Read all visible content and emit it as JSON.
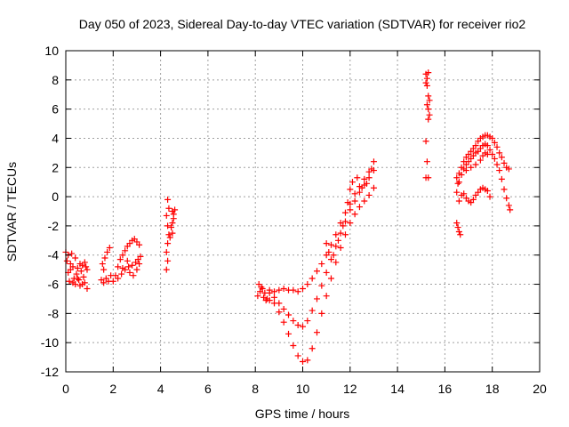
{
  "chart_data": {
    "type": "scatter",
    "title": "Day 050 of 2023, Sidereal Day-to-day VTEC variation (SDTVAR) for receiver rio2",
    "xlabel": "GPS time / hours",
    "ylabel": "SDTVAR / TECUs",
    "xlim": [
      0,
      20
    ],
    "ylim": [
      -12,
      10
    ],
    "x_ticks": [
      0,
      2,
      4,
      6,
      8,
      10,
      12,
      14,
      16,
      18,
      20
    ],
    "y_ticks": [
      -12,
      -10,
      -8,
      -6,
      -4,
      -2,
      0,
      2,
      4,
      6,
      8,
      10
    ],
    "grid": true,
    "marker": "plus",
    "series_color": "#ff0000",
    "series": [
      {
        "points": [
          [
            0.0,
            -3.8
          ],
          [
            0.05,
            -4.4
          ],
          [
            0.1,
            -5.2
          ],
          [
            0.15,
            -5.8
          ],
          [
            0.2,
            -4.6
          ],
          [
            0.25,
            -3.9
          ],
          [
            0.3,
            -4.8
          ],
          [
            0.35,
            -5.6
          ],
          [
            0.4,
            -6.0
          ],
          [
            0.45,
            -5.3
          ],
          [
            0.5,
            -4.9
          ],
          [
            0.55,
            -5.7
          ],
          [
            0.6,
            -6.1
          ],
          [
            0.65,
            -5.1
          ],
          [
            0.7,
            -4.7
          ],
          [
            0.75,
            -5.5
          ],
          [
            0.8,
            -5.9
          ],
          [
            0.85,
            -4.8
          ],
          [
            0.9,
            -5.0
          ],
          [
            0.1,
            -4.0
          ],
          [
            0.2,
            -5.0
          ],
          [
            0.3,
            -5.9
          ],
          [
            0.5,
            -5.6
          ],
          [
            0.7,
            -6.0
          ],
          [
            0.9,
            -6.3
          ],
          [
            0.4,
            -4.2
          ],
          [
            0.6,
            -4.6
          ],
          [
            0.8,
            -4.5
          ],
          [
            1.5,
            -5.7
          ],
          [
            1.6,
            -5.9
          ],
          [
            1.7,
            -5.6
          ],
          [
            1.8,
            -5.8
          ],
          [
            1.9,
            -5.4
          ],
          [
            1.55,
            -4.6
          ],
          [
            1.65,
            -4.2
          ],
          [
            1.75,
            -3.8
          ],
          [
            1.85,
            -3.5
          ],
          [
            1.6,
            -5.0
          ],
          [
            2.0,
            -5.8
          ],
          [
            2.1,
            -5.4
          ],
          [
            2.2,
            -4.8
          ],
          [
            2.3,
            -4.3
          ],
          [
            2.4,
            -4.0
          ],
          [
            2.5,
            -3.7
          ],
          [
            2.6,
            -3.4
          ],
          [
            2.7,
            -3.2
          ],
          [
            2.8,
            -3.0
          ],
          [
            2.9,
            -2.9
          ],
          [
            3.0,
            -3.1
          ],
          [
            3.1,
            -3.3
          ],
          [
            2.2,
            -5.6
          ],
          [
            2.35,
            -5.3
          ],
          [
            2.5,
            -5.0
          ],
          [
            2.65,
            -4.8
          ],
          [
            2.8,
            -4.7
          ],
          [
            2.95,
            -4.5
          ],
          [
            3.05,
            -4.3
          ],
          [
            3.1,
            -4.6
          ],
          [
            3.15,
            -4.1
          ],
          [
            2.7,
            -5.2
          ],
          [
            2.85,
            -5.4
          ],
          [
            3.0,
            -5.0
          ],
          [
            2.6,
            -4.4
          ],
          [
            2.4,
            -4.9
          ],
          [
            4.3,
            -0.2
          ],
          [
            4.35,
            -0.8
          ],
          [
            4.25,
            -1.3
          ],
          [
            4.3,
            -2.0
          ],
          [
            4.35,
            -2.6
          ],
          [
            4.3,
            -3.2
          ],
          [
            4.25,
            -3.8
          ],
          [
            4.3,
            -4.4
          ],
          [
            4.25,
            -5.0
          ],
          [
            4.5,
            -1.0
          ],
          [
            4.55,
            -1.5
          ],
          [
            4.5,
            -1.8
          ],
          [
            4.45,
            -2.1
          ],
          [
            4.5,
            -2.5
          ],
          [
            4.55,
            -1.2
          ],
          [
            4.6,
            -0.9
          ],
          [
            4.4,
            -2.8
          ],
          [
            8.1,
            -6.8
          ],
          [
            8.2,
            -6.5
          ],
          [
            8.3,
            -6.3
          ],
          [
            8.4,
            -6.6
          ],
          [
            8.5,
            -7.0
          ],
          [
            8.6,
            -7.1
          ],
          [
            8.15,
            -6.0
          ],
          [
            8.25,
            -6.2
          ],
          [
            8.35,
            -6.9
          ],
          [
            8.45,
            -7.1
          ],
          [
            8.6,
            -6.4
          ],
          [
            8.8,
            -6.5
          ],
          [
            9.0,
            -6.4
          ],
          [
            9.2,
            -6.3
          ],
          [
            9.4,
            -6.4
          ],
          [
            9.6,
            -6.4
          ],
          [
            9.8,
            -6.5
          ],
          [
            10.0,
            -6.3
          ],
          [
            10.2,
            -6.0
          ],
          [
            10.4,
            -5.6
          ],
          [
            10.6,
            -5.1
          ],
          [
            10.8,
            -4.6
          ],
          [
            11.0,
            -4.0
          ],
          [
            11.2,
            -3.3
          ],
          [
            11.4,
            -2.6
          ],
          [
            11.6,
            -1.8
          ],
          [
            11.8,
            -1.1
          ],
          [
            12.0,
            -0.5
          ],
          [
            12.2,
            0.2
          ],
          [
            12.4,
            0.7
          ],
          [
            12.6,
            1.2
          ],
          [
            12.8,
            1.7
          ],
          [
            13.0,
            2.4
          ],
          [
            8.6,
            -6.6
          ],
          [
            8.8,
            -6.9
          ],
          [
            9.0,
            -7.3
          ],
          [
            9.2,
            -7.7
          ],
          [
            9.4,
            -8.1
          ],
          [
            9.6,
            -8.5
          ],
          [
            9.8,
            -8.8
          ],
          [
            10.0,
            -8.9
          ],
          [
            10.2,
            -8.5
          ],
          [
            10.4,
            -7.8
          ],
          [
            10.6,
            -7.0
          ],
          [
            10.8,
            -6.1
          ],
          [
            11.0,
            -5.2
          ],
          [
            11.2,
            -4.3
          ],
          [
            11.4,
            -3.4
          ],
          [
            11.6,
            -2.5
          ],
          [
            11.8,
            -1.7
          ],
          [
            12.0,
            -0.9
          ],
          [
            12.2,
            -0.3
          ],
          [
            12.4,
            0.3
          ],
          [
            12.6,
            0.8
          ],
          [
            12.8,
            1.3
          ],
          [
            13.0,
            1.8
          ],
          [
            8.8,
            -7.3
          ],
          [
            9.0,
            -7.9
          ],
          [
            9.2,
            -8.6
          ],
          [
            9.4,
            -9.4
          ],
          [
            9.6,
            -10.2
          ],
          [
            9.8,
            -10.9
          ],
          [
            10.0,
            -11.3
          ],
          [
            10.2,
            -11.2
          ],
          [
            10.4,
            -10.4
          ],
          [
            10.6,
            -9.3
          ],
          [
            10.8,
            -8.0
          ],
          [
            11.0,
            -6.8
          ],
          [
            11.2,
            -5.6
          ],
          [
            11.4,
            -4.5
          ],
          [
            11.6,
            -3.5
          ],
          [
            11.8,
            -2.6
          ],
          [
            12.0,
            -1.8
          ],
          [
            12.2,
            -1.2
          ],
          [
            12.4,
            -0.7
          ],
          [
            12.6,
            -0.3
          ],
          [
            12.8,
            0.1
          ],
          [
            13.0,
            0.6
          ],
          [
            11.3,
            -4.0
          ],
          [
            11.5,
            -3.0
          ],
          [
            11.7,
            -2.0
          ],
          [
            11.9,
            -0.4
          ],
          [
            12.0,
            0.5
          ],
          [
            12.1,
            1.0
          ],
          [
            12.3,
            1.3
          ],
          [
            12.5,
            0.6
          ],
          [
            12.7,
            0.9
          ],
          [
            12.9,
            1.9
          ],
          [
            11.1,
            -3.8
          ],
          [
            11.0,
            -3.2
          ],
          [
            15.2,
            8.4
          ],
          [
            15.25,
            8.1
          ],
          [
            15.2,
            7.8
          ],
          [
            15.3,
            8.5
          ],
          [
            15.25,
            7.6
          ],
          [
            15.3,
            6.9
          ],
          [
            15.35,
            6.6
          ],
          [
            15.25,
            6.3
          ],
          [
            15.3,
            6.0
          ],
          [
            15.35,
            5.6
          ],
          [
            15.3,
            5.3
          ],
          [
            15.2,
            3.8
          ],
          [
            15.25,
            2.4
          ],
          [
            15.3,
            1.3
          ],
          [
            15.2,
            1.3
          ],
          [
            16.5,
            -1.8
          ],
          [
            16.55,
            -2.1
          ],
          [
            16.6,
            -2.4
          ],
          [
            16.65,
            -2.6
          ],
          [
            16.5,
            0.3
          ],
          [
            16.55,
            0.9
          ],
          [
            16.5,
            1.3
          ],
          [
            16.6,
            1.6
          ],
          [
            16.6,
            -0.3
          ],
          [
            16.7,
            0.1
          ],
          [
            16.8,
            0.2
          ],
          [
            16.9,
            -0.1
          ],
          [
            17.0,
            -0.3
          ],
          [
            17.1,
            -0.4
          ],
          [
            17.2,
            -0.2
          ],
          [
            17.3,
            0.1
          ],
          [
            17.4,
            0.3
          ],
          [
            17.5,
            0.5
          ],
          [
            17.6,
            0.6
          ],
          [
            17.7,
            0.5
          ],
          [
            17.8,
            0.4
          ],
          [
            17.9,
            0.0
          ],
          [
            16.6,
            1.0
          ],
          [
            16.7,
            1.5
          ],
          [
            16.8,
            1.9
          ],
          [
            16.9,
            2.2
          ],
          [
            17.0,
            2.4
          ],
          [
            17.1,
            2.6
          ],
          [
            17.2,
            2.8
          ],
          [
            17.3,
            3.0
          ],
          [
            17.4,
            3.1
          ],
          [
            17.5,
            3.3
          ],
          [
            17.6,
            3.5
          ],
          [
            17.7,
            3.6
          ],
          [
            17.8,
            3.5
          ],
          [
            17.9,
            3.2
          ],
          [
            18.0,
            2.9
          ],
          [
            18.1,
            2.6
          ],
          [
            18.2,
            2.2
          ],
          [
            18.3,
            1.8
          ],
          [
            18.4,
            1.2
          ],
          [
            18.5,
            0.5
          ],
          [
            18.6,
            -0.1
          ],
          [
            18.7,
            -0.6
          ],
          [
            18.75,
            -0.9
          ],
          [
            16.7,
            2.0
          ],
          [
            16.8,
            2.4
          ],
          [
            16.9,
            2.7
          ],
          [
            17.0,
            2.9
          ],
          [
            17.1,
            3.1
          ],
          [
            17.2,
            3.3
          ],
          [
            17.3,
            3.5
          ],
          [
            17.4,
            3.8
          ],
          [
            17.5,
            4.0
          ],
          [
            17.6,
            4.1
          ],
          [
            17.7,
            4.2
          ],
          [
            17.8,
            4.2
          ],
          [
            17.9,
            4.1
          ],
          [
            18.0,
            4.0
          ],
          [
            18.1,
            3.7
          ],
          [
            18.2,
            3.4
          ],
          [
            18.3,
            3.0
          ],
          [
            18.4,
            2.7
          ],
          [
            18.5,
            2.3
          ],
          [
            18.6,
            2.0
          ],
          [
            18.7,
            1.9
          ],
          [
            17.5,
            2.5
          ],
          [
            17.6,
            2.8
          ],
          [
            17.7,
            3.0
          ],
          [
            17.8,
            2.9
          ],
          [
            17.3,
            2.2
          ],
          [
            17.1,
            2.0
          ],
          [
            16.9,
            1.8
          ]
        ]
      }
    ]
  }
}
